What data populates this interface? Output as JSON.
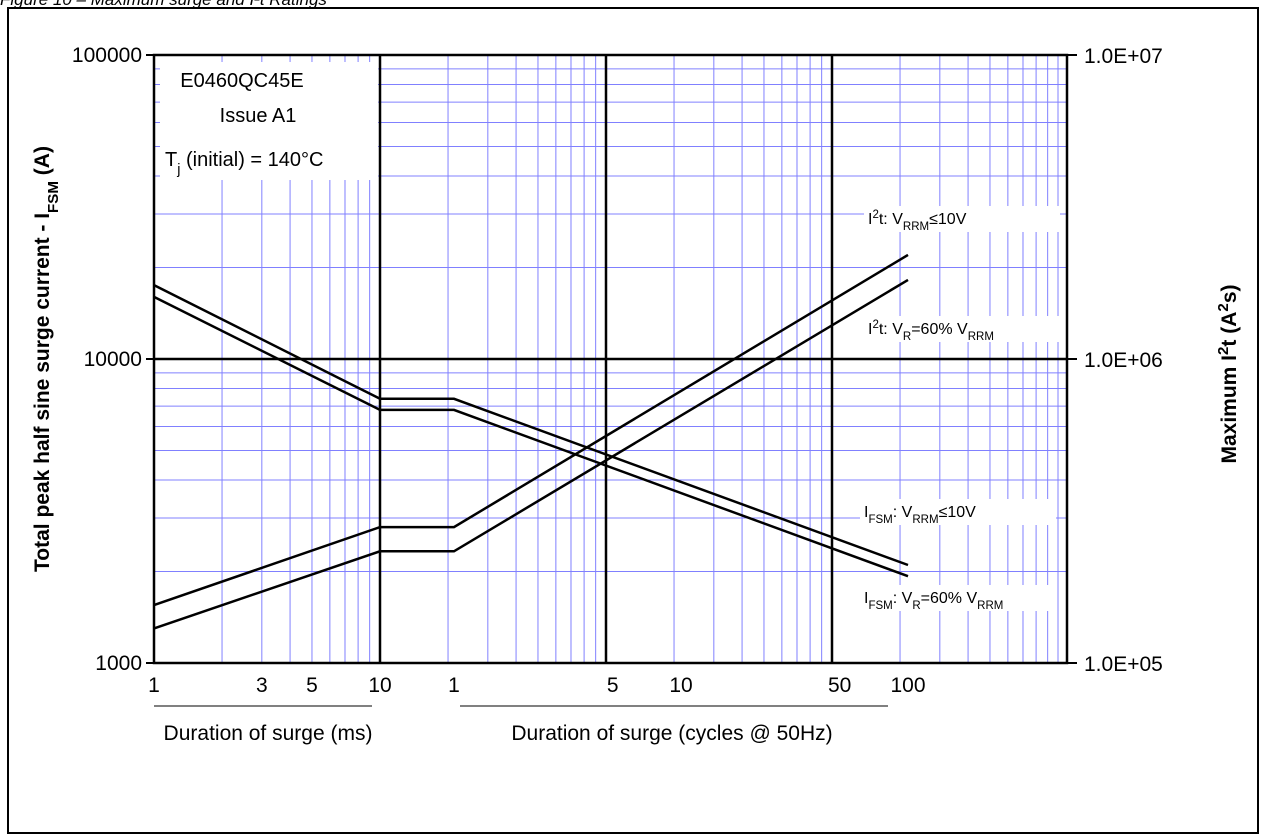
{
  "figure_caption": "Figure 10 – Maximum surge and I²t Ratings",
  "chart_data": {
    "type": "line",
    "info_box": [
      "E0460QC45E",
      "Issue A1",
      "T_j (initial) = 140°C"
    ],
    "y_left": {
      "label": "Total peak half sine surge current - I_FSM (A)",
      "scale": "log",
      "range": [
        1000,
        100000
      ],
      "tick_labels": [
        "1000",
        "10000",
        "100000"
      ]
    },
    "y_right": {
      "label": "Maximum I²t (A²s)",
      "scale": "log",
      "range": [
        100000,
        10000000
      ],
      "tick_labels": [
        "1.0E+05",
        "1.0E+06",
        "1.0E+07"
      ]
    },
    "x_ms": {
      "label": "Duration of surge (ms)",
      "scale": "log",
      "range": [
        1,
        10
      ],
      "tick_labels": [
        "1",
        "3",
        "5",
        "10"
      ]
    },
    "x_cycles": {
      "label": "Duration of surge (cycles @ 50Hz)",
      "scale": "log",
      "range": [
        1,
        100
      ],
      "tick_labels": [
        "1",
        "5",
        "10",
        "50",
        "100"
      ]
    },
    "grid": true,
    "series": [
      {
        "name": "I_FSM: V_RRM≤10V",
        "axis": "left",
        "points": [
          {
            "x": "1 ms",
            "y": 17500
          },
          {
            "x": "10 ms",
            "y": 7400
          },
          {
            "x": "1 cycle",
            "y": 7400
          },
          {
            "x": "100 cycles",
            "y": 2100
          }
        ]
      },
      {
        "name": "I_FSM: V_R=60% V_RRM",
        "axis": "left",
        "points": [
          {
            "x": "1 ms",
            "y": 16000
          },
          {
            "x": "10 ms",
            "y": 6800
          },
          {
            "x": "1 cycle",
            "y": 6800
          },
          {
            "x": "100 cycles",
            "y": 1930
          }
        ]
      },
      {
        "name": "I²t: V_RRM≤10V",
        "axis": "right",
        "points": [
          {
            "x": "1 ms",
            "y": 155000
          },
          {
            "x": "10 ms",
            "y": 280000
          },
          {
            "x": "1 cycle",
            "y": 280000
          },
          {
            "x": "100 cycles",
            "y": 2200000
          }
        ]
      },
      {
        "name": "I²t: V_R=60% V_RRM",
        "axis": "right",
        "points": [
          {
            "x": "1 ms",
            "y": 130000
          },
          {
            "x": "10 ms",
            "y": 233000
          },
          {
            "x": "1 cycle",
            "y": 233000
          },
          {
            "x": "100 cycles",
            "y": 1820000
          }
        ]
      }
    ]
  }
}
